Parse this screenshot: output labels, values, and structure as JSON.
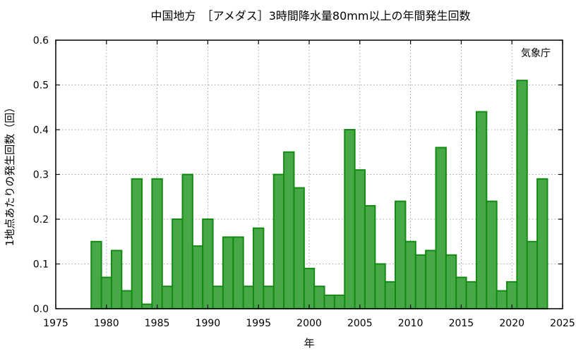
{
  "chart_data": {
    "type": "bar",
    "title": "中国地方　［アメダス］3時間降水量80mm以上の年間発生回数",
    "xlabel": "年",
    "ylabel": "1地点あたりの発生回数（回）",
    "annotation": "気象庁",
    "xlim": [
      1975,
      2025
    ],
    "ylim": [
      0,
      0.6
    ],
    "x_ticks": [
      1975,
      1980,
      1985,
      1990,
      1995,
      2000,
      2005,
      2010,
      2015,
      2020,
      2025
    ],
    "y_ticks": [
      0.0,
      0.1,
      0.2,
      0.3,
      0.4,
      0.5,
      0.6
    ],
    "y_tick_labels": [
      "0.0",
      "0.1",
      "0.2",
      "0.3",
      "0.4",
      "0.5",
      "0.6"
    ],
    "grid": true,
    "bar_color": "#46a846",
    "bar_edge_color": "#138a13",
    "categories": [
      1979,
      1980,
      1981,
      1982,
      1983,
      1984,
      1985,
      1986,
      1987,
      1988,
      1989,
      1990,
      1991,
      1992,
      1993,
      1994,
      1995,
      1996,
      1997,
      1998,
      1999,
      2000,
      2001,
      2002,
      2003,
      2004,
      2005,
      2006,
      2007,
      2008,
      2009,
      2010,
      2011,
      2012,
      2013,
      2014,
      2015,
      2016,
      2017,
      2018,
      2019,
      2020,
      2021,
      2022,
      2023
    ],
    "values": [
      0.15,
      0.07,
      0.13,
      0.04,
      0.29,
      0.01,
      0.29,
      0.05,
      0.2,
      0.3,
      0.14,
      0.2,
      0.05,
      0.16,
      0.16,
      0.05,
      0.18,
      0.05,
      0.3,
      0.35,
      0.27,
      0.09,
      0.05,
      0.03,
      0.03,
      0.4,
      0.31,
      0.23,
      0.1,
      0.06,
      0.24,
      0.15,
      0.12,
      0.13,
      0.36,
      0.12,
      0.07,
      0.06,
      0.44,
      0.24,
      0.04,
      0.06,
      0.51,
      0.15,
      0.29
    ]
  }
}
